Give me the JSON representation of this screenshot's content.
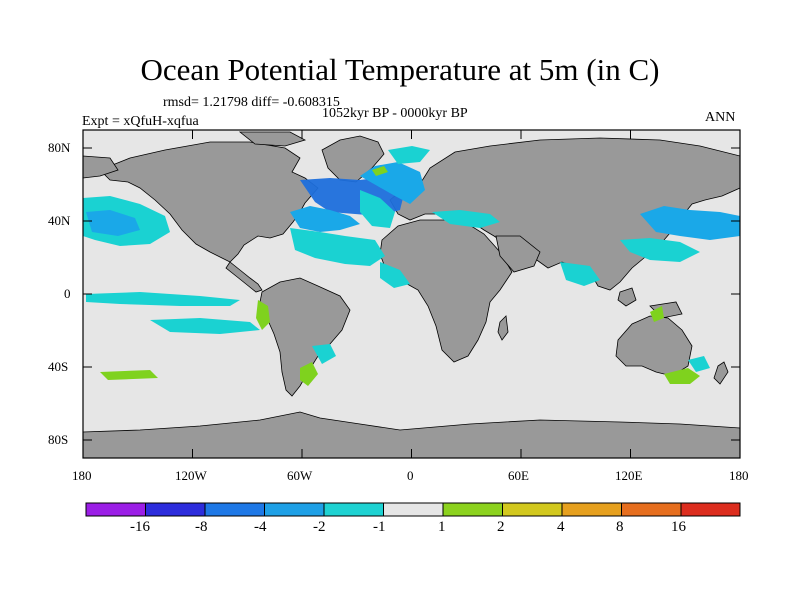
{
  "title": "Ocean Potential Temperature at 5m (in C)",
  "stats_text": "rmsd= 1.21798 diff= -0.608315",
  "time_range": "1052kyr BP - 0000kyr BP",
  "experiment": "Expt = xQfuH-xqfua",
  "season": "ANN",
  "map": {
    "projection": "cylindrical equidistant",
    "lon_range": [
      -180,
      180
    ],
    "lat_range": [
      -90,
      90
    ],
    "lat_labels": [
      "80N",
      "40N",
      "0",
      "40S",
      "80S"
    ],
    "lon_labels": [
      "180",
      "120W",
      "60W",
      "0",
      "60E",
      "120E",
      "180"
    ],
    "colors": {
      "ocean_background": "#e6e6e6",
      "land": "#999999",
      "cooling_strong": "#1e6fdc",
      "cooling_moderate": "#1aa8e8",
      "cooling_weak": "#1ad2d2",
      "warming_weak": "#7fd21e"
    }
  },
  "colorbar": {
    "tick_labels": [
      "-16",
      "-8",
      "-4",
      "-2",
      "-1",
      "1",
      "2",
      "4",
      "8",
      "16"
    ],
    "colors": [
      "#9b1ee6",
      "#2d2ddc",
      "#1e78e6",
      "#1ea0e6",
      "#1ed2d2",
      "#e6e6e6",
      "#8cd21e",
      "#d2c81e",
      "#e6a01e",
      "#e66e1e",
      "#dc2d1e"
    ]
  }
}
